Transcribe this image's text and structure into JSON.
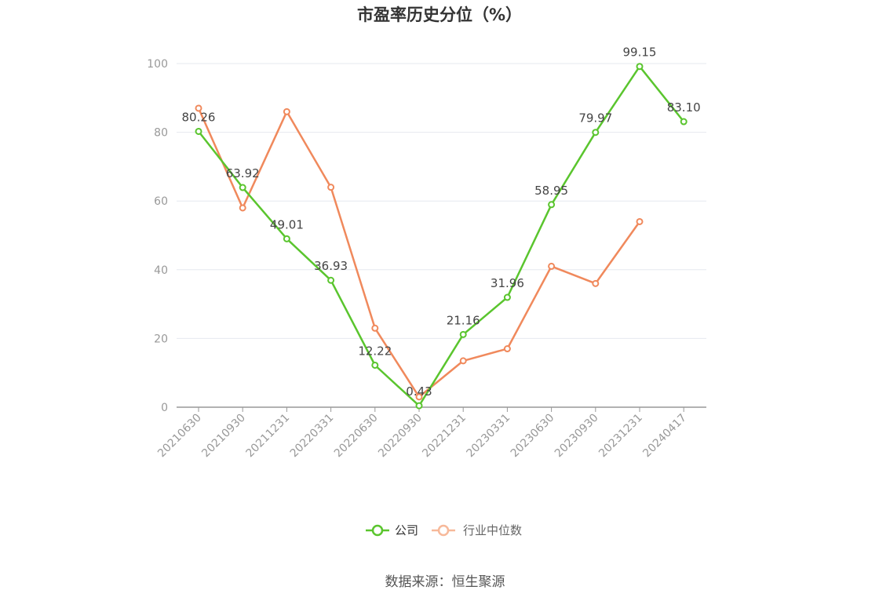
{
  "chart_data": {
    "type": "line",
    "title": "市盈率历史分位（%）",
    "categories": [
      "20210630",
      "20210930",
      "20211231",
      "20220331",
      "20220630",
      "20220930",
      "20221231",
      "20230331",
      "20230630",
      "20230930",
      "20231231",
      "20240417"
    ],
    "series": [
      {
        "name": "公司",
        "color": "#5ac52e",
        "values": [
          80.26,
          63.92,
          49.01,
          36.93,
          12.22,
          0.43,
          21.16,
          31.96,
          58.95,
          79.97,
          99.15,
          83.1
        ],
        "labels": [
          "80.26",
          "63.92",
          "49.01",
          "36.93",
          "12.22",
          "0.43",
          "21.16",
          "31.96",
          "58.95",
          "79.97",
          "99.15",
          "83.10"
        ]
      },
      {
        "name": "行业中位数",
        "color": "#f0895c",
        "values": [
          87,
          58,
          86,
          64,
          23,
          3,
          13.5,
          17,
          41,
          36,
          54,
          null
        ]
      }
    ],
    "yticks": [
      0,
      20,
      40,
      60,
      80,
      100
    ],
    "ylim": [
      0,
      100
    ],
    "legend": "bottom-center"
  },
  "source": "数据来源：恒生聚源"
}
